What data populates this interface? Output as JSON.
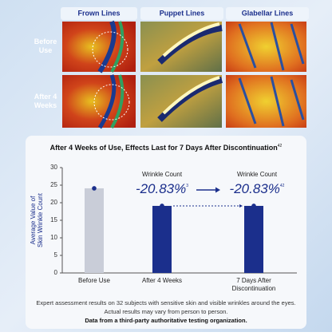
{
  "grid": {
    "columns": [
      "Frown Lines",
      "Puppet Lines",
      "Glabellar Lines"
    ],
    "rows": [
      "Before Use",
      "After 4 Weeks"
    ]
  },
  "chart_data": {
    "type": "bar",
    "title": "After 4 Weeks of Use, Effects Last for 7 Days After Discontinuation",
    "title_sup": "42",
    "ylabel": [
      "Average Value of",
      "Skin Wrinkle Count"
    ],
    "categories": [
      "Before Use",
      "After 4 Weeks",
      "7 Days After Discontinuation"
    ],
    "values": [
      24.1,
      19.1,
      19.1
    ],
    "colors": [
      "#c9cdd8",
      "#1b2f8c",
      "#1b2f8c"
    ],
    "ylim": [
      0,
      30
    ],
    "yticks": [
      0,
      5,
      10,
      15,
      20,
      25,
      30
    ],
    "annotations": [
      {
        "label": "Wrinkle Count",
        "text": "-20.83%",
        "sup": "3"
      },
      {
        "label": "Wrinkle Count",
        "text": "-20.83%",
        "sup": "42"
      }
    ]
  },
  "notes": [
    "Expert assessment results on 32 subjects with sensitive skin and visible wrinkles around the eyes.",
    "Actual results may vary from person to person."
  ],
  "source": "Data from a third-party authoritative testing organization."
}
